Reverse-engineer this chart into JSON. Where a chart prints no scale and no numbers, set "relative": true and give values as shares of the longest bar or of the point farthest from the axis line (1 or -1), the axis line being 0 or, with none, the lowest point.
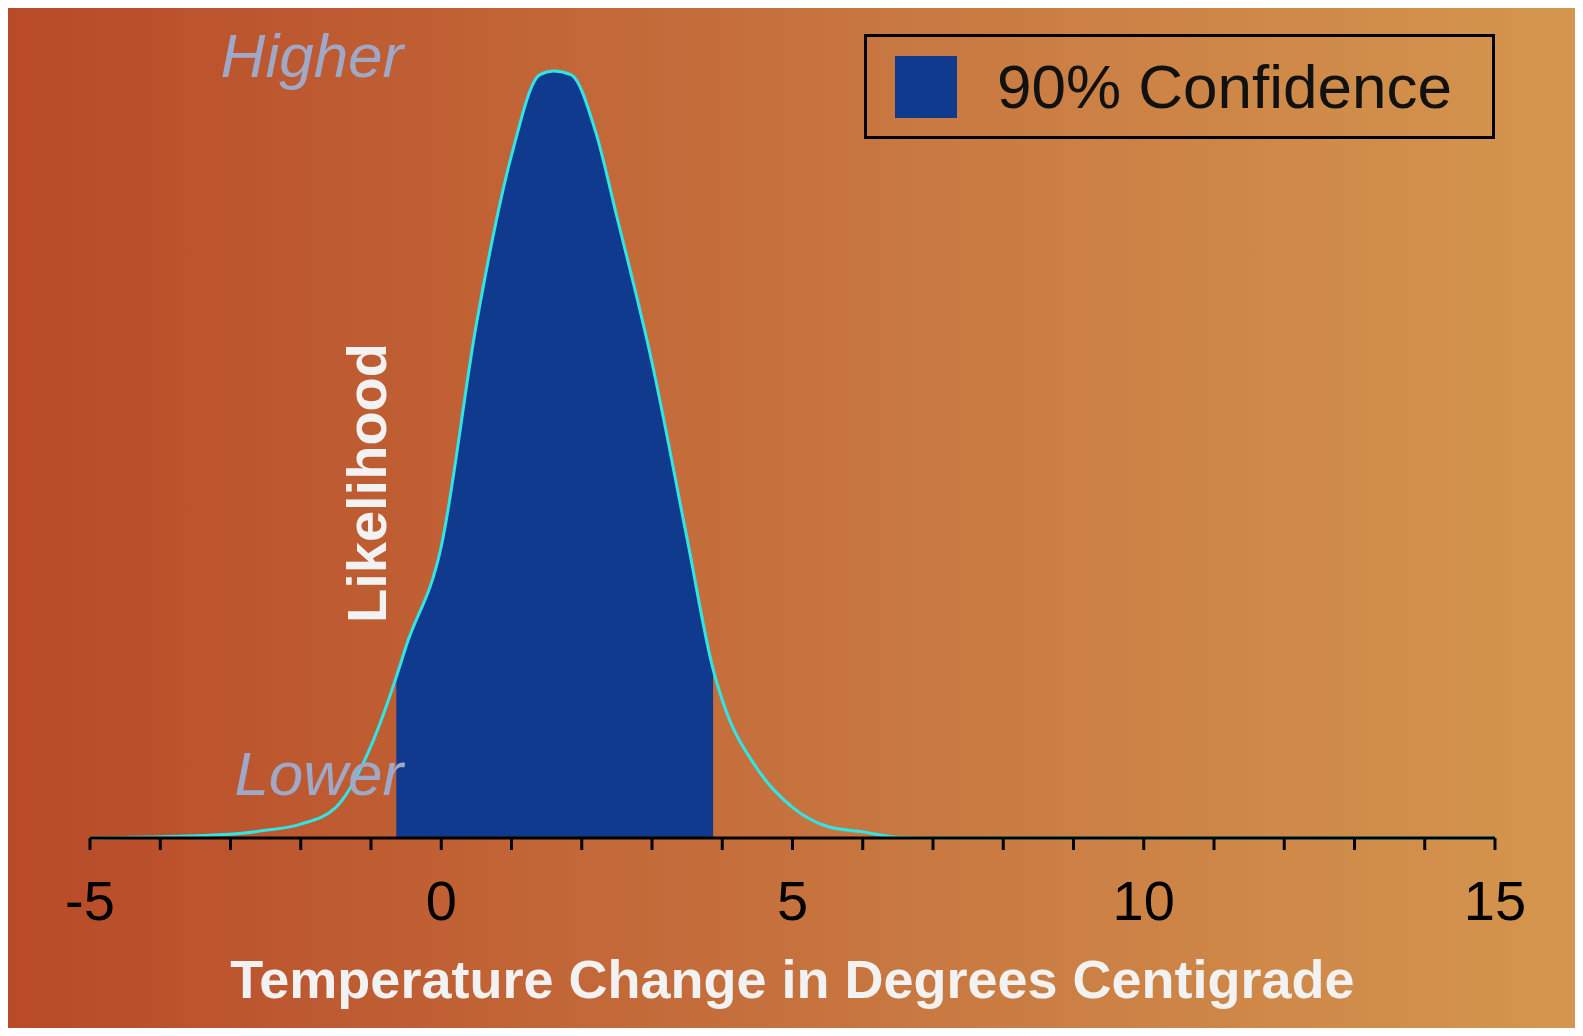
{
  "chart_data": {
    "type": "line",
    "relative": true,
    "xlabel": "Temperature Change in Degrees Centigrade",
    "ylabel": "Likelihood",
    "annotations": [
      "Higher",
      "Lower"
    ],
    "x": [
      -5,
      -3,
      -2.5,
      -2,
      -1.5,
      -1,
      -0.64,
      -0.5,
      0,
      0.5,
      1,
      1.4,
      1.6,
      1.85,
      2.2,
      2.5,
      3,
      3.5,
      3.87,
      4,
      4.5,
      5,
      5.5,
      6,
      6.5,
      7,
      15
    ],
    "xlim": [
      -5,
      15
    ],
    "xticks": [
      -5,
      {
        "value": -4,
        "label": null
      },
      {
        "value": -3,
        "label": null
      },
      {
        "value": -2,
        "label": null
      },
      {
        "value": -1,
        "label": null
      },
      0,
      {
        "value": 1,
        "label": null
      },
      {
        "value": 2,
        "label": null
      },
      {
        "value": 3,
        "label": null
      },
      {
        "value": 4,
        "label": null
      },
      5,
      {
        "value": 6,
        "label": null
      },
      {
        "value": 7,
        "label": null
      },
      {
        "value": 8,
        "label": null
      },
      {
        "value": 9,
        "label": null
      },
      10,
      {
        "value": 11,
        "label": null
      },
      {
        "value": 12,
        "label": null
      },
      {
        "value": 13,
        "label": null
      },
      {
        "value": 14,
        "label": null
      },
      15
    ],
    "series": [
      {
        "type": "area",
        "name": "90% Confidence",
        "color": "#0f3a8e",
        "values": [
          null,
          null,
          null,
          null,
          null,
          null,
          0.21,
          0.25,
          0.38,
          0.67,
          0.89,
          0.995,
          1,
          0.995,
          0.92,
          0.81,
          0.62,
          0.39,
          0.22,
          null,
          null,
          null,
          null,
          null,
          null,
          null,
          null
        ]
      },
      {
        "color": "#2ee6e6",
        "values": [
          0,
          0.005,
          0.01,
          0.018,
          0.04,
          0.12,
          0.21,
          0.25,
          0.38,
          0.67,
          0.89,
          0.995,
          1,
          0.995,
          0.92,
          0.81,
          0.62,
          0.39,
          0.22,
          0.18,
          0.09,
          0.04,
          0.015,
          0.008,
          0.001,
          0,
          0
        ]
      }
    ],
    "legend": "top right",
    "marker": "none",
    "line_style": "solid"
  }
}
